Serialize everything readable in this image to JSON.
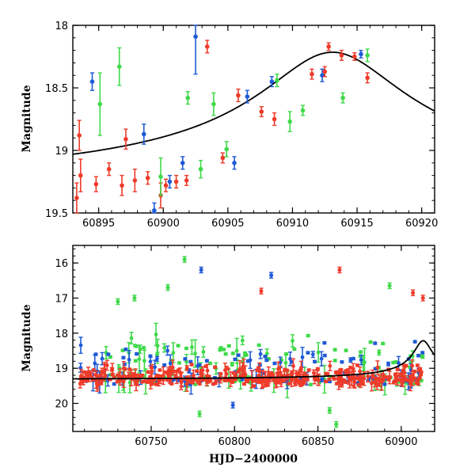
{
  "chart_data": [
    {
      "type": "scatter",
      "title": "",
      "xlabel": "",
      "ylabel": "Magnitude",
      "xlim": [
        60893,
        60921
      ],
      "ylim": [
        19.5,
        18.0
      ],
      "y_inverted": true,
      "xticks": [
        60895,
        60900,
        60905,
        60910,
        60915,
        60920
      ],
      "yticks": [
        18,
        18.5,
        19,
        19.5
      ],
      "xtick_labels": [
        "60895",
        "60900",
        "60905",
        "60910",
        "60915",
        "60920"
      ],
      "ytick_labels": [
        "18",
        "18.5",
        "19",
        "19.5"
      ],
      "grid": false,
      "legend": "none",
      "series": [
        {
          "color": "#1f5ad6",
          "points": [
            {
              "x": 60894.5,
              "y": 18.45,
              "err": 0.07
            },
            {
              "x": 60898.5,
              "y": 18.87,
              "err": 0.08
            },
            {
              "x": 60899.3,
              "y": 19.48,
              "err": 0.06
            },
            {
              "x": 60900.5,
              "y": 19.25,
              "err": 0.05
            },
            {
              "x": 60901.5,
              "y": 19.1,
              "err": 0.05
            },
            {
              "x": 60902.5,
              "y": 18.09,
              "err": 0.3
            },
            {
              "x": 60905.5,
              "y": 19.1,
              "err": 0.05
            },
            {
              "x": 60906.5,
              "y": 18.57,
              "err": 0.05
            },
            {
              "x": 60908.4,
              "y": 18.45,
              "err": 0.04
            },
            {
              "x": 60912.3,
              "y": 18.4,
              "err": 0.05
            },
            {
              "x": 60915.3,
              "y": 18.23,
              "err": 0.03
            }
          ]
        },
        {
          "color": "#ee3b2a",
          "points": [
            {
              "x": 60893.3,
              "y": 19.38,
              "err": 0.12
            },
            {
              "x": 60893.5,
              "y": 18.88,
              "err": 0.12
            },
            {
              "x": 60893.6,
              "y": 19.2,
              "err": 0.13
            },
            {
              "x": 60894.8,
              "y": 19.27,
              "err": 0.06
            },
            {
              "x": 60895.8,
              "y": 19.15,
              "err": 0.05
            },
            {
              "x": 60896.8,
              "y": 19.28,
              "err": 0.08
            },
            {
              "x": 60897.1,
              "y": 18.91,
              "err": 0.08
            },
            {
              "x": 60897.8,
              "y": 19.24,
              "err": 0.09
            },
            {
              "x": 60898.8,
              "y": 19.22,
              "err": 0.05
            },
            {
              "x": 60899.8,
              "y": 19.36,
              "err": 0.1
            },
            {
              "x": 60900.2,
              "y": 19.28,
              "err": 0.05
            },
            {
              "x": 60901.0,
              "y": 19.25,
              "err": 0.05
            },
            {
              "x": 60901.8,
              "y": 19.24,
              "err": 0.04
            },
            {
              "x": 60903.4,
              "y": 18.17,
              "err": 0.05
            },
            {
              "x": 60904.6,
              "y": 19.06,
              "err": 0.04
            },
            {
              "x": 60905.8,
              "y": 18.56,
              "err": 0.05
            },
            {
              "x": 60907.6,
              "y": 18.69,
              "err": 0.04
            },
            {
              "x": 60908.6,
              "y": 18.75,
              "err": 0.05
            },
            {
              "x": 60911.5,
              "y": 18.39,
              "err": 0.04
            },
            {
              "x": 60912.5,
              "y": 18.37,
              "err": 0.04
            },
            {
              "x": 60912.8,
              "y": 18.17,
              "err": 0.03
            },
            {
              "x": 60913.8,
              "y": 18.24,
              "err": 0.04
            },
            {
              "x": 60914.8,
              "y": 18.25,
              "err": 0.03
            },
            {
              "x": 60915.8,
              "y": 18.42,
              "err": 0.04
            }
          ]
        },
        {
          "color": "#3fd94a",
          "points": [
            {
              "x": 60895.1,
              "y": 18.63,
              "err": 0.25
            },
            {
              "x": 60896.6,
              "y": 18.33,
              "err": 0.15
            },
            {
              "x": 60899.8,
              "y": 19.21,
              "err": 0.15
            },
            {
              "x": 60901.9,
              "y": 18.58,
              "err": 0.05
            },
            {
              "x": 60902.9,
              "y": 19.15,
              "err": 0.07
            },
            {
              "x": 60903.9,
              "y": 18.63,
              "err": 0.09
            },
            {
              "x": 60904.9,
              "y": 18.99,
              "err": 0.06
            },
            {
              "x": 60908.8,
              "y": 18.44,
              "err": 0.05
            },
            {
              "x": 60909.8,
              "y": 18.77,
              "err": 0.08
            },
            {
              "x": 60910.8,
              "y": 18.68,
              "err": 0.04
            },
            {
              "x": 60913.9,
              "y": 18.58,
              "err": 0.04
            },
            {
              "x": 60915.8,
              "y": 18.24,
              "err": 0.05
            }
          ]
        }
      ],
      "model_curve": {
        "color": "#000000",
        "peak_x": 60913.1,
        "peak_mag": 18.215,
        "base_mag": 19.33,
        "scale_days": 5.6
      }
    },
    {
      "type": "scatter",
      "title": "",
      "xlabel": "HJD−2400000",
      "ylabel": "Magnitude",
      "xlim": [
        60703,
        60920
      ],
      "ylim": [
        20.8,
        15.5
      ],
      "y_inverted": true,
      "xticks": [
        60750,
        60800,
        60850,
        60900
      ],
      "yticks": [
        16,
        17,
        18,
        19,
        20
      ],
      "xtick_labels": [
        "60750",
        "60800",
        "60850",
        "60900"
      ],
      "ytick_labels": [
        "16",
        "17",
        "18",
        "19",
        "20"
      ],
      "grid": false,
      "legend": "none",
      "baseline_mag": 19.33,
      "outlier_points": [
        {
          "x": 60780,
          "y": 16.2,
          "c": "blue"
        },
        {
          "x": 60770,
          "y": 15.9,
          "c": "green"
        },
        {
          "x": 60740,
          "y": 17.0,
          "c": "green"
        },
        {
          "x": 60760,
          "y": 16.7,
          "c": "green"
        },
        {
          "x": 60822,
          "y": 16.35,
          "c": "blue"
        },
        {
          "x": 60816,
          "y": 16.8,
          "c": "red"
        },
        {
          "x": 60863,
          "y": 16.2,
          "c": "red"
        },
        {
          "x": 60893,
          "y": 16.65,
          "c": "green"
        },
        {
          "x": 60907,
          "y": 16.85,
          "c": "red"
        },
        {
          "x": 60913,
          "y": 17.0,
          "c": "red"
        },
        {
          "x": 60857,
          "y": 20.2,
          "c": "green"
        },
        {
          "x": 60861,
          "y": 20.6,
          "c": "green"
        },
        {
          "x": 60799,
          "y": 20.05,
          "c": "blue"
        },
        {
          "x": 60779,
          "y": 20.3,
          "c": "green"
        },
        {
          "x": 60730,
          "y": 17.1,
          "c": "green"
        }
      ],
      "scatter_spec": {
        "blue_count": 120,
        "red_count": 380,
        "green_count": 150,
        "scatter_mag": 0.9,
        "x_start": 60707,
        "x_end": 60913
      }
    }
  ]
}
